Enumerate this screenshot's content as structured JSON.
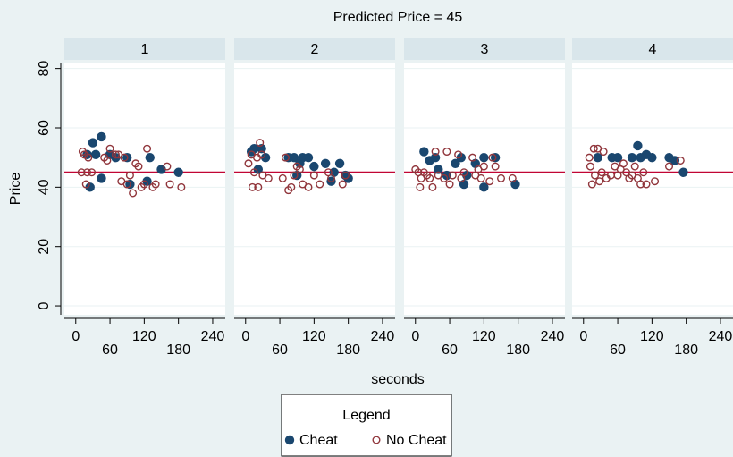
{
  "chart_data": {
    "type": "scatter",
    "title": "Predicted Price = 45",
    "xlabel": "seconds",
    "ylabel": "Price",
    "legend_title": "Legend",
    "series": [
      {
        "name": "Cheat",
        "color": "#1a476f",
        "marker": "filled"
      },
      {
        "name": "No Cheat",
        "color": "#90353b",
        "marker": "hollow"
      }
    ],
    "reference_line": 45,
    "reference_color": "#c10534",
    "xlim": [
      -20,
      262
    ],
    "xticks": [
      0,
      60,
      120,
      180,
      240
    ],
    "ylim": [
      -3,
      82
    ],
    "yticks": [
      0,
      20,
      40,
      60,
      80
    ],
    "grid": true,
    "panels": [
      {
        "title": "1",
        "series": [
          {
            "x": [
              20,
              25,
              30,
              35,
              45,
              45,
              60,
              70,
              90,
              95,
              125,
              130,
              150,
              180
            ],
            "values": [
              51,
              40,
              55,
              51,
              57,
              43,
              51,
              50,
              50,
              41,
              42,
              50,
              46,
              45
            ]
          },
          {
            "x": [
              10,
              12,
              15,
              18,
              20,
              22,
              28,
              50,
              55,
              60,
              70,
              75,
              80,
              85,
              90,
              95,
              100,
              105,
              110,
              115,
              120,
              125,
              135,
              140,
              160,
              165,
              185
            ],
            "values": [
              45,
              52,
              51,
              41,
              45,
              50,
              45,
              50,
              49,
              53,
              51,
              51,
              42,
              50,
              41,
              44,
              38,
              48,
              47,
              40,
              41,
              53,
              40,
              41,
              47,
              41,
              40
            ]
          }
        ]
      },
      {
        "title": "2",
        "series": [
          {
            "x": [
              10,
              15,
              22,
              28,
              35,
              75,
              85,
              90,
              95,
              100,
              110,
              120,
              140,
              150,
              155,
              165,
              175,
              180
            ],
            "values": [
              52,
              53,
              46,
              53,
              50,
              50,
              50,
              44,
              48,
              50,
              50,
              47,
              48,
              42,
              45,
              48,
              44,
              43
            ]
          },
          {
            "x": [
              5,
              10,
              12,
              15,
              20,
              22,
              25,
              28,
              30,
              40,
              65,
              70,
              75,
              80,
              85,
              90,
              95,
              100,
              110,
              120,
              130,
              145,
              150,
              170,
              175
            ],
            "values": [
              48,
              51,
              40,
              45,
              50,
              40,
              55,
              51,
              44,
              43,
              43,
              50,
              39,
              40,
              44,
              47,
              46,
              41,
              40,
              44,
              41,
              45,
              43,
              41,
              44
            ]
          }
        ]
      },
      {
        "title": "3",
        "series": [
          {
            "x": [
              15,
              25,
              35,
              40,
              55,
              70,
              80,
              85,
              90,
              105,
              120,
              120,
              140,
              175
            ],
            "values": [
              52,
              49,
              50,
              46,
              44,
              48,
              50,
              41,
              44,
              48,
              50,
              40,
              50,
              41
            ]
          },
          {
            "x": [
              0,
              5,
              8,
              10,
              15,
              20,
              25,
              30,
              35,
              40,
              50,
              55,
              60,
              65,
              75,
              80,
              85,
              100,
              105,
              110,
              115,
              120,
              130,
              135,
              140,
              150,
              170
            ],
            "values": [
              46,
              45,
              40,
              43,
              45,
              44,
              43,
              40,
              52,
              44,
              43,
              52,
              41,
              44,
              51,
              43,
              45,
              50,
              44,
              46,
              43,
              47,
              42,
              50,
              47,
              43,
              43
            ]
          }
        ]
      },
      {
        "title": "4",
        "series": [
          {
            "x": [
              25,
              50,
              60,
              85,
              95,
              100,
              110,
              120,
              150,
              160,
              175
            ],
            "values": [
              50,
              50,
              50,
              50,
              54,
              50,
              51,
              50,
              50,
              49,
              45
            ]
          },
          {
            "x": [
              10,
              12,
              15,
              18,
              20,
              25,
              28,
              32,
              35,
              40,
              48,
              55,
              60,
              65,
              70,
              75,
              80,
              85,
              90,
              95,
              100,
              105,
              110,
              125,
              150,
              170
            ],
            "values": [
              50,
              47,
              41,
              53,
              44,
              53,
              42,
              45,
              52,
              43,
              44,
              47,
              44,
              46,
              48,
              45,
              43,
              44,
              47,
              43,
              41,
              45,
              41,
              42,
              47,
              49
            ]
          }
        ]
      }
    ]
  }
}
